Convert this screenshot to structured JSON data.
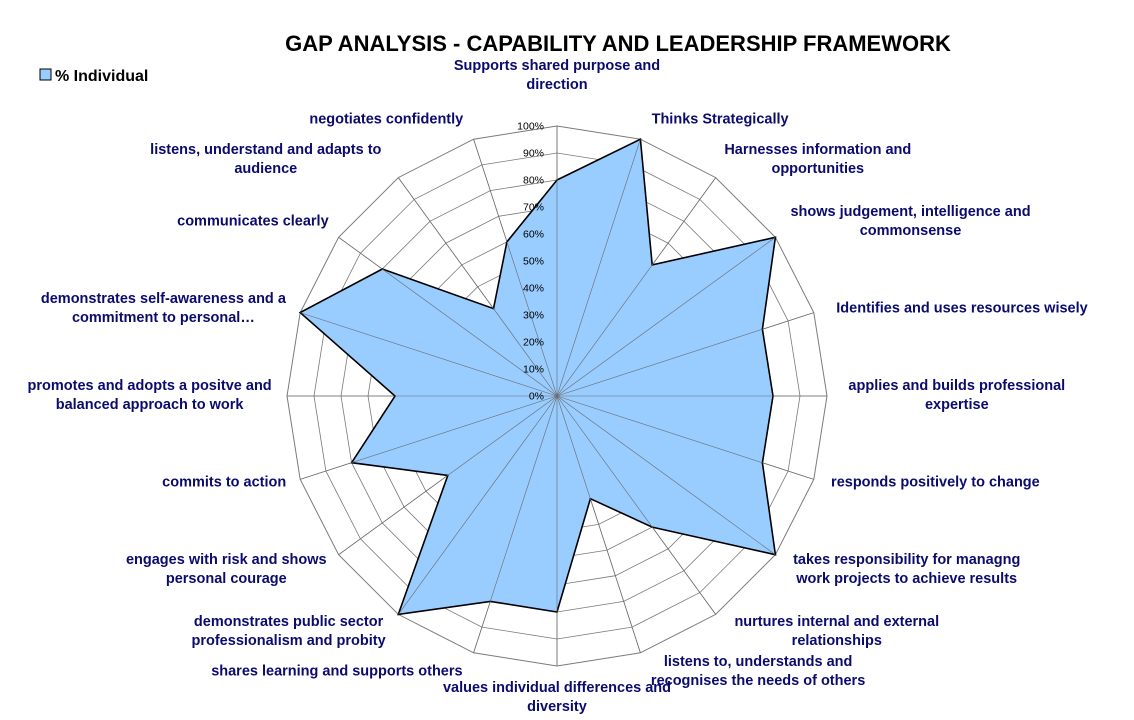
{
  "chart_data": {
    "type": "radar",
    "title": "GAP ANALYSIS  - CAPABILITY AND LEADERSHIP FRAMEWORK",
    "legend_position": "top-left",
    "rlim": [
      0,
      100
    ],
    "ticks": [
      "0%",
      "10%",
      "20%",
      "30%",
      "40%",
      "50%",
      "60%",
      "70%",
      "80%",
      "90%",
      "100%"
    ],
    "categories": [
      [
        "Supports shared purpose and",
        "direction"
      ],
      [
        "Thinks Strategically"
      ],
      [
        "Harnesses information and",
        "opportunities"
      ],
      [
        "shows judgement, intelligence and",
        "commonsense"
      ],
      [
        "Identifies and uses resources wisely"
      ],
      [
        "applies and builds professional",
        "expertise"
      ],
      [
        "responds positively to change"
      ],
      [
        "takes responsibility for managng",
        "work projects to achieve results"
      ],
      [
        "nurtures internal and external",
        "relationships"
      ],
      [
        "listens to, understands and",
        "recognises the needs of others"
      ],
      [
        "values individual differences and",
        "diversity"
      ],
      [
        "shares learning and supports others"
      ],
      [
        "demonstrates public sector",
        "professionalism and probity"
      ],
      [
        "engages with risk and shows",
        "personal courage"
      ],
      [
        "commits to action"
      ],
      [
        "promotes and adopts a positve and",
        "balanced approach to work"
      ],
      [
        "demonstrates self-awareness and a",
        "commitment to personal…"
      ],
      [
        "communicates clearly"
      ],
      [
        "listens, understand and adapts to",
        "audience"
      ],
      [
        "negotiates confidently"
      ]
    ],
    "series": [
      {
        "name": "% Individual",
        "color": "#99ccff",
        "line_color": "#000000",
        "values": [
          80,
          100,
          60,
          100,
          80,
          80,
          80,
          100,
          60,
          40,
          80,
          80,
          100,
          50,
          80,
          60,
          100,
          80,
          40,
          60
        ]
      }
    ]
  }
}
